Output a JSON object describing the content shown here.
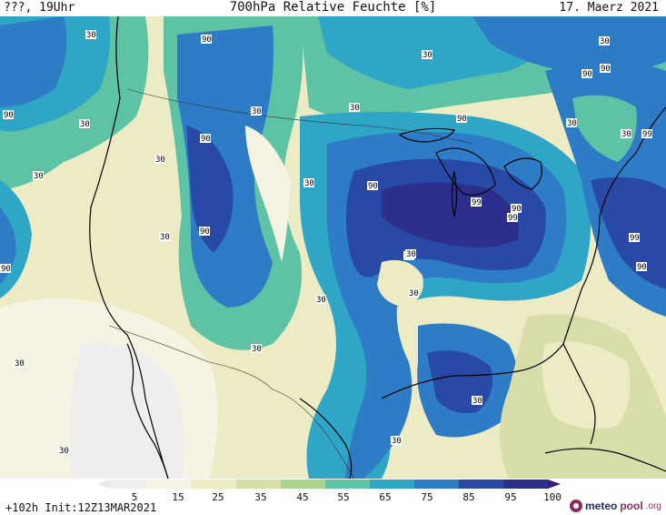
{
  "header": {
    "run_label": "???, 19Uhr",
    "title": "700hPa Relative Feuchte [%]",
    "date": "17. Maerz 2021"
  },
  "map": {
    "contour_labels": [
      "30",
      "90",
      "30",
      "30",
      "90",
      "30",
      "30",
      "30",
      "30",
      "30",
      "30",
      "90",
      "99",
      "30",
      "30",
      "90",
      "90",
      "30",
      "90",
      "99",
      "99",
      "90",
      "30",
      "30",
      "99",
      "90",
      "30",
      "90",
      "30",
      "30",
      "30",
      "30",
      "90",
      "30",
      "90",
      "30"
    ]
  },
  "legend": {
    "ticks": [
      "5",
      "15",
      "25",
      "35",
      "45",
      "55",
      "65",
      "75",
      "85",
      "95",
      "100"
    ],
    "colors": [
      "#eeeeee",
      "#f5f4e2",
      "#ecebc3",
      "#d8deaa",
      "#a9d48c",
      "#5ec2a4",
      "#2fa6c6",
      "#2e7bc6",
      "#2849a6",
      "#2d2f8d",
      "#3b1a73"
    ],
    "units": "%"
  },
  "footer": {
    "run_info": "+102h Init:12Z13MAR2021"
  },
  "logo": {
    "text": "meteo",
    "accent": "pool",
    "tld": ".org"
  }
}
